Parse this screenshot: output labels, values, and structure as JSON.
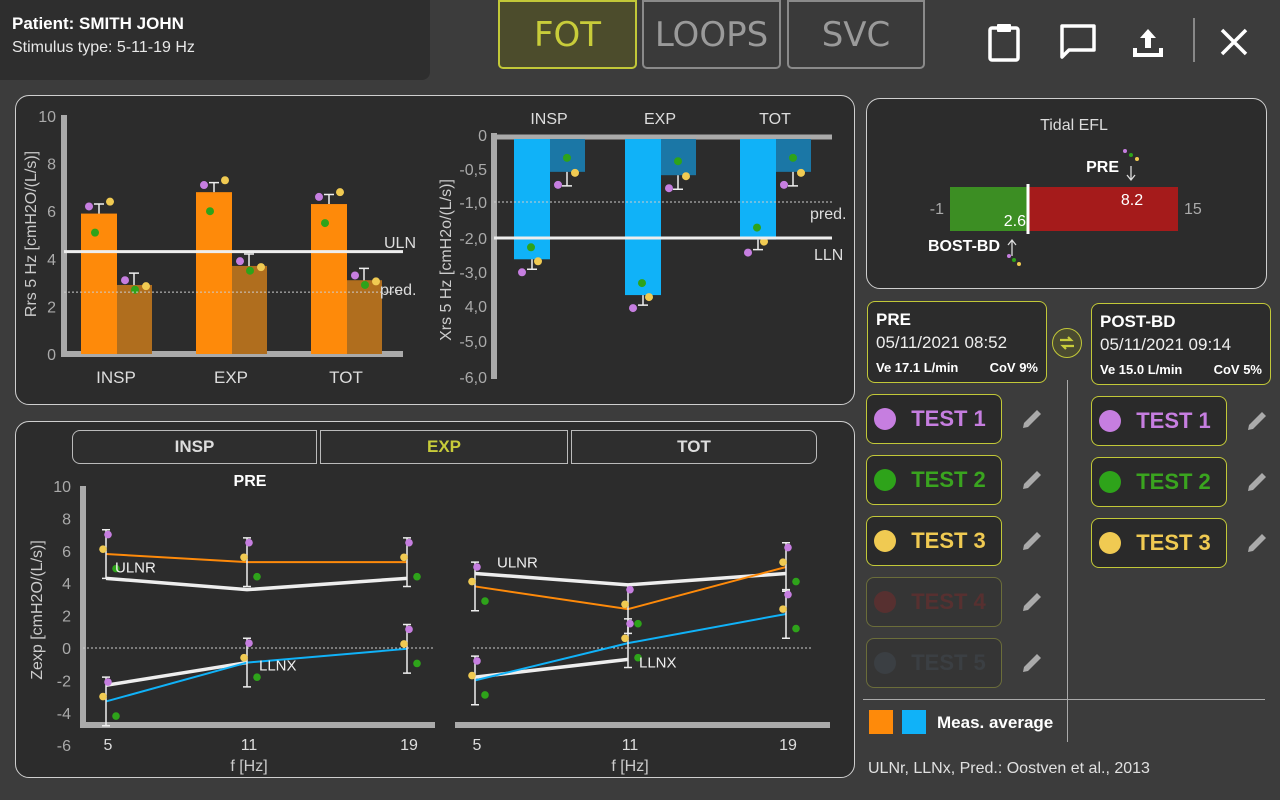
{
  "patient": {
    "name": "Patient: SMITH JOHN",
    "stimulus": "Stimulus type: 5-11-19 Hz"
  },
  "tabs": [
    "FOT",
    "LOOPS",
    "SVC"
  ],
  "icons": [
    "clipboard-icon",
    "comment-icon",
    "upload-icon",
    "close-icon"
  ],
  "colors": {
    "insp": "#fe8a0a",
    "exp_bar": "#b06e1e",
    "xrs": "#10b2f8",
    "xrs_dark": "#1b77a6",
    "accent": "#c2c838",
    "purple": "#c67ee0",
    "green": "#2ea31a",
    "yellow": "#f0ca52"
  },
  "rrs": {
    "ylabel": "Rrs 5 Hz [cmH2O/(L/s)]",
    "ticks": [
      "10",
      "8",
      "6",
      "4",
      "2",
      "0"
    ],
    "categories": [
      "INSP",
      "EXP",
      "TOT"
    ],
    "uln": "ULN",
    "pred": "pred.",
    "uln_value": 4.3,
    "pred_value": 2.6,
    "bars": [
      {
        "pre": 5.9,
        "post": 2.9
      },
      {
        "pre": 6.8,
        "post": 3.7
      },
      {
        "pre": 6.3,
        "post": 3.1
      }
    ]
  },
  "xrs": {
    "ylabel": "Xrs 5 Hz [cmH2o/(L/s)]",
    "ticks": [
      "0",
      "-0,5",
      "-1,0",
      "-2,0",
      "-3,0",
      "4,0",
      "-5,0",
      "-6,0"
    ],
    "categories": [
      "INSP",
      "EXP",
      "TOT"
    ],
    "pred": "pred.",
    "lln": "LLN",
    "bars": [
      {
        "pre": -2.6,
        "post": -0.55
      },
      {
        "pre": -3.6,
        "post": -0.6
      },
      {
        "pre": -2.05,
        "post": -0.55
      }
    ]
  },
  "efl": {
    "title": "Tidal EFL",
    "min": "-1",
    "max": "15",
    "post_value": "2.6",
    "pre_value": "8.2",
    "pre_label": "PRE",
    "post_label": "BOST-BD"
  },
  "zexp": {
    "segments": [
      "INSP",
      "EXP",
      "TOT"
    ],
    "active_segment": "EXP",
    "title": "PRE",
    "ylabel": "Zexp [cmH2O/(L/s)]",
    "xlabel": "f [Hz]",
    "yticks": [
      "10",
      "8",
      "6",
      "4",
      "2",
      "0",
      "-2",
      "-4",
      "-6"
    ],
    "xticks": [
      "5",
      "11",
      "19"
    ],
    "uln": "ULNR",
    "lln": "LLNX",
    "left": {
      "orange": [
        5.8,
        5.3,
        5.3
      ],
      "blue": [
        -3.3,
        -0.9,
        -0.05
      ],
      "uln": [
        4.3,
        3.6,
        4.3
      ],
      "lln": [
        -2.3,
        -0.9
      ]
    },
    "right": {
      "orange": [
        3.8,
        2.4,
        5.0
      ],
      "blue": [
        -2.0,
        0.3,
        2.1
      ],
      "uln": [
        4.6,
        3.9,
        4.6
      ],
      "lln": [
        -1.8,
        -0.7
      ]
    }
  },
  "sessions": {
    "pre": {
      "title": "PRE",
      "date": "05/11/2021 08:52",
      "ve": "Ve 17.1 L/min",
      "cov": "CoV 9%"
    },
    "post": {
      "title": "POST-BD",
      "date": "05/11/2021 09:14",
      "ve": "Ve 15.0 L/min",
      "cov": "CoV 5%"
    }
  },
  "pre_tests": [
    {
      "label": "TEST 1",
      "color": "#c67ee0",
      "text": "#c67ee0",
      "enabled": true
    },
    {
      "label": "TEST 2",
      "color": "#2ea31a",
      "text": "#3aa41f",
      "enabled": true
    },
    {
      "label": "TEST 3",
      "color": "#f0ca52",
      "text": "#f0ca52",
      "enabled": true
    },
    {
      "label": "TEST 4",
      "color": "#8a1c1c",
      "text": "#8a1c1c",
      "enabled": false
    },
    {
      "label": "TEST 5",
      "color": "#3a4550",
      "text": "#3a4550",
      "enabled": false
    }
  ],
  "post_tests": [
    {
      "label": "TEST 1",
      "color": "#c67ee0",
      "text": "#c67ee0"
    },
    {
      "label": "TEST 2",
      "color": "#2ea31a",
      "text": "#3aa41f"
    },
    {
      "label": "TEST 3",
      "color": "#f0ca52",
      "text": "#f0ca52"
    }
  ],
  "legend": {
    "label": "Meas. average"
  },
  "footer": "ULNr, LLNx, Pred.: Oostven et al., 2013"
}
